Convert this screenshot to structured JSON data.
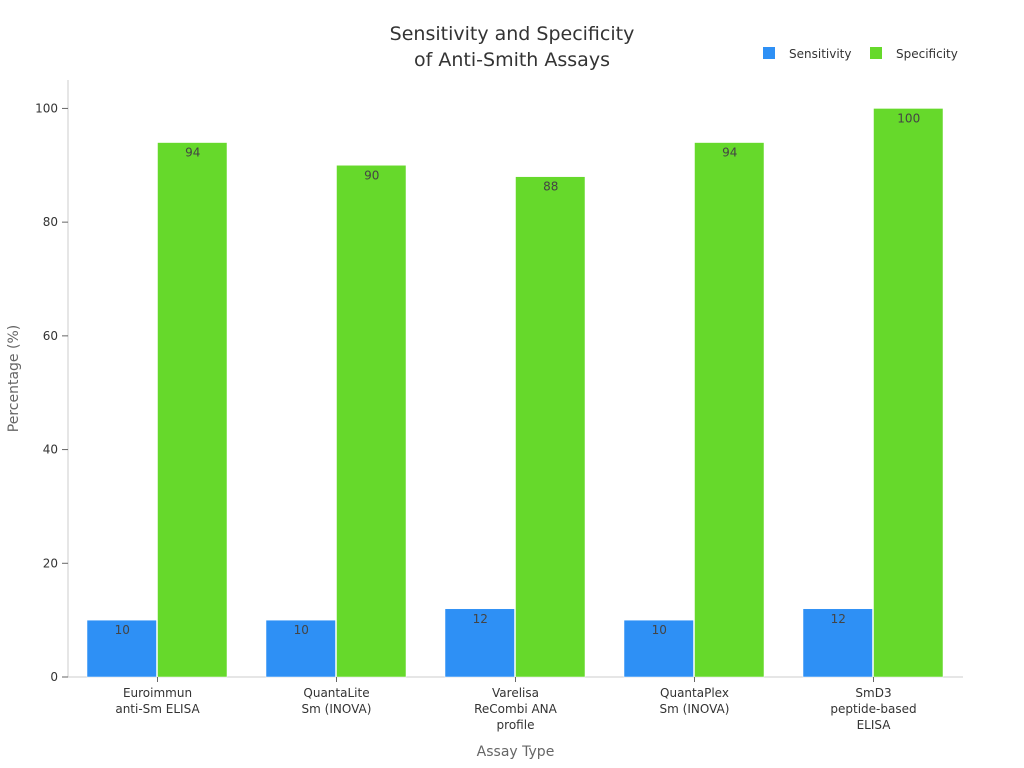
{
  "chart_data": {
    "type": "bar",
    "title_lines": [
      "Sensitivity and Specificity",
      "of Anti-Smith Assays"
    ],
    "xlabel": "Assay Type",
    "ylabel": "Percentage (%)",
    "ylim": [
      0,
      105
    ],
    "yticks": [
      0,
      20,
      40,
      60,
      80,
      100
    ],
    "grid": false,
    "legend_position": "top-right",
    "categories": [
      [
        "Euroimmun",
        "anti-Sm ELISA"
      ],
      [
        "QuantaLite",
        "Sm (INOVA)"
      ],
      [
        "Varelisa",
        "ReCombi ANA",
        "profile"
      ],
      [
        "QuantaPlex",
        "Sm (INOVA)"
      ],
      [
        "SmD3",
        "peptide-based",
        "ELISA"
      ]
    ],
    "series": [
      {
        "name": "Sensitivity",
        "color": "#2e90f5",
        "values": [
          10,
          10,
          12,
          10,
          12
        ]
      },
      {
        "name": "Specificity",
        "color": "#66d92b",
        "values": [
          94,
          90,
          88,
          94,
          100
        ]
      }
    ]
  }
}
